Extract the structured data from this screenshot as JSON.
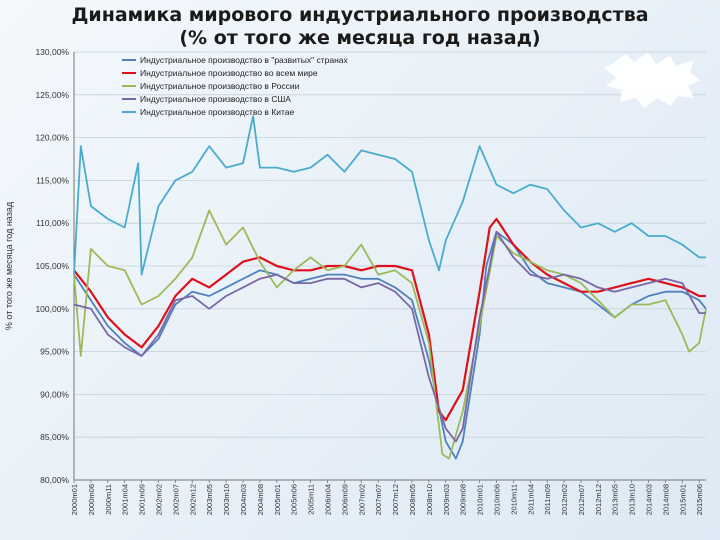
{
  "title_line1": "Динамика мирового индустриального производства",
  "title_line2": "(% от того же месяца год назад)",
  "chart_data": {
    "type": "line",
    "ylabel": "% от того же месяца год назад",
    "xlabel": "",
    "ylim": [
      80,
      130
    ],
    "ytick_labels": [
      "130,00%",
      "125,00%",
      "120,00%",
      "115,00%",
      "110,00%",
      "105,00%",
      "100,00%",
      "95,00%",
      "90,00%",
      "85,00%",
      "80,00%"
    ],
    "yticks": [
      130,
      125,
      120,
      115,
      110,
      105,
      100,
      95,
      90,
      85,
      80
    ],
    "x_tick_labels": [
      "2000m01",
      "2000m06",
      "2000m11",
      "2001m04",
      "2001m09",
      "2002m02",
      "2002m07",
      "2002m12",
      "2003m05",
      "2003m10",
      "2004m03",
      "2004m08",
      "2005m01",
      "2005m06",
      "2005m11",
      "2006m04",
      "2006m09",
      "2007m02",
      "2007m07",
      "2007m12",
      "2008m05",
      "2008m10",
      "2009m03",
      "2009m08",
      "2010m01",
      "2010m06",
      "2010m11",
      "2011m04",
      "2011m09",
      "2012m02",
      "2012m07",
      "2012m12",
      "2013m05",
      "2013m10",
      "2014m03",
      "2014m08",
      "2015m01",
      "2015m06"
    ],
    "x_start": "2000m01",
    "x_end": "2015m08",
    "grid": "horizontal",
    "legend_position": "top-left",
    "series": [
      {
        "name": "Индустриальное производство в \"развитых\" странах",
        "color": "#4f81bd",
        "points": [
          [
            "2000m01",
            104.0
          ],
          [
            "2000m06",
            101.0
          ],
          [
            "2000m11",
            98.0
          ],
          [
            "2001m04",
            96.0
          ],
          [
            "2001m09",
            94.5
          ],
          [
            "2002m02",
            96.5
          ],
          [
            "2002m07",
            100.5
          ],
          [
            "2002m12",
            102.0
          ],
          [
            "2003m05",
            101.5
          ],
          [
            "2003m10",
            102.5
          ],
          [
            "2004m03",
            103.5
          ],
          [
            "2004m08",
            104.5
          ],
          [
            "2005m01",
            104.0
          ],
          [
            "2005m06",
            103.0
          ],
          [
            "2005m11",
            103.5
          ],
          [
            "2006m04",
            104.0
          ],
          [
            "2006m09",
            104.0
          ],
          [
            "2007m02",
            103.5
          ],
          [
            "2007m07",
            103.5
          ],
          [
            "2007m12",
            102.5
          ],
          [
            "2008m05",
            101.0
          ],
          [
            "2008m10",
            94.0
          ],
          [
            "2009m03",
            84.5
          ],
          [
            "2009m06",
            82.5
          ],
          [
            "2009m08",
            84.5
          ],
          [
            "2010m01",
            97.0
          ],
          [
            "2010m03",
            105.0
          ],
          [
            "2010m06",
            109.0
          ],
          [
            "2010m11",
            107.5
          ],
          [
            "2011m04",
            104.5
          ],
          [
            "2011m09",
            103.0
          ],
          [
            "2012m02",
            102.5
          ],
          [
            "2012m07",
            102.0
          ],
          [
            "2012m12",
            100.5
          ],
          [
            "2013m05",
            99.0
          ],
          [
            "2013m10",
            100.5
          ],
          [
            "2014m03",
            101.5
          ],
          [
            "2014m08",
            102.0
          ],
          [
            "2015m01",
            102.0
          ],
          [
            "2015m06",
            101.0
          ],
          [
            "2015m08",
            100.0
          ]
        ]
      },
      {
        "name": "Индустриальное производство во всем мире",
        "color": "#e0101a",
        "points": [
          [
            "2000m01",
            104.5
          ],
          [
            "2000m06",
            102.0
          ],
          [
            "2000m11",
            99.0
          ],
          [
            "2001m04",
            97.0
          ],
          [
            "2001m09",
            95.5
          ],
          [
            "2002m02",
            98.0
          ],
          [
            "2002m07",
            101.5
          ],
          [
            "2002m12",
            103.5
          ],
          [
            "2003m05",
            102.5
          ],
          [
            "2003m10",
            104.0
          ],
          [
            "2004m03",
            105.5
          ],
          [
            "2004m08",
            106.0
          ],
          [
            "2005m01",
            105.0
          ],
          [
            "2005m06",
            104.5
          ],
          [
            "2005m11",
            104.5
          ],
          [
            "2006m04",
            105.0
          ],
          [
            "2006m09",
            105.0
          ],
          [
            "2007m02",
            104.5
          ],
          [
            "2007m07",
            105.0
          ],
          [
            "2007m12",
            105.0
          ],
          [
            "2008m05",
            104.5
          ],
          [
            "2008m10",
            97.0
          ],
          [
            "2009m01",
            88.0
          ],
          [
            "2009m03",
            87.0
          ],
          [
            "2009m08",
            90.5
          ],
          [
            "2010m01",
            102.0
          ],
          [
            "2010m04",
            109.5
          ],
          [
            "2010m06",
            110.5
          ],
          [
            "2010m11",
            107.5
          ],
          [
            "2011m04",
            105.5
          ],
          [
            "2011m09",
            104.0
          ],
          [
            "2012m02",
            103.0
          ],
          [
            "2012m07",
            102.0
          ],
          [
            "2012m12",
            102.0
          ],
          [
            "2013m05",
            102.5
          ],
          [
            "2013m10",
            103.0
          ],
          [
            "2014m03",
            103.5
          ],
          [
            "2014m08",
            103.0
          ],
          [
            "2015m01",
            102.5
          ],
          [
            "2015m06",
            101.5
          ],
          [
            "2015m08",
            101.5
          ]
        ]
      },
      {
        "name": "Индустриальное производство в России",
        "color": "#9bbb59",
        "points": [
          [
            "2000m01",
            104.0
          ],
          [
            "2000m03",
            94.5
          ],
          [
            "2000m06",
            107.0
          ],
          [
            "2000m11",
            105.0
          ],
          [
            "2001m04",
            104.5
          ],
          [
            "2001m09",
            100.5
          ],
          [
            "2002m02",
            101.5
          ],
          [
            "2002m07",
            103.5
          ],
          [
            "2002m12",
            106.0
          ],
          [
            "2003m05",
            111.5
          ],
          [
            "2003m10",
            107.5
          ],
          [
            "2004m03",
            109.5
          ],
          [
            "2004m08",
            105.5
          ],
          [
            "2005m01",
            102.5
          ],
          [
            "2005m06",
            104.5
          ],
          [
            "2005m11",
            106.0
          ],
          [
            "2006m04",
            104.5
          ],
          [
            "2006m09",
            105.0
          ],
          [
            "2007m02",
            107.5
          ],
          [
            "2007m07",
            104.0
          ],
          [
            "2007m12",
            104.5
          ],
          [
            "2008m05",
            103.0
          ],
          [
            "2008m10",
            96.0
          ],
          [
            "2009m02",
            83.0
          ],
          [
            "2009m04",
            82.5
          ],
          [
            "2009m08",
            88.0
          ],
          [
            "2010m01",
            98.0
          ],
          [
            "2010m06",
            108.5
          ],
          [
            "2010m11",
            106.5
          ],
          [
            "2011m04",
            105.5
          ],
          [
            "2011m09",
            104.5
          ],
          [
            "2012m02",
            104.0
          ],
          [
            "2012m07",
            103.0
          ],
          [
            "2012m12",
            101.0
          ],
          [
            "2013m05",
            99.0
          ],
          [
            "2013m10",
            100.5
          ],
          [
            "2014m03",
            100.5
          ],
          [
            "2014m08",
            101.0
          ],
          [
            "2015m01",
            97.0
          ],
          [
            "2015m03",
            95.0
          ],
          [
            "2015m06",
            96.0
          ],
          [
            "2015m08",
            100.0
          ]
        ]
      },
      {
        "name": "Индустриальное производство в США",
        "color": "#7a68a6",
        "points": [
          [
            "2000m01",
            100.5
          ],
          [
            "2000m06",
            100.0
          ],
          [
            "2000m11",
            97.0
          ],
          [
            "2001m04",
            95.5
          ],
          [
            "2001m09",
            94.5
          ],
          [
            "2002m02",
            97.0
          ],
          [
            "2002m07",
            101.0
          ],
          [
            "2002m12",
            101.5
          ],
          [
            "2003m05",
            100.0
          ],
          [
            "2003m10",
            101.5
          ],
          [
            "2004m03",
            102.5
          ],
          [
            "2004m08",
            103.5
          ],
          [
            "2005m01",
            104.0
          ],
          [
            "2005m06",
            103.0
          ],
          [
            "2005m11",
            103.0
          ],
          [
            "2006m04",
            103.5
          ],
          [
            "2006m09",
            103.5
          ],
          [
            "2007m02",
            102.5
          ],
          [
            "2007m07",
            103.0
          ],
          [
            "2007m12",
            102.0
          ],
          [
            "2008m05",
            100.0
          ],
          [
            "2008m10",
            92.0
          ],
          [
            "2009m03",
            86.0
          ],
          [
            "2009m06",
            84.5
          ],
          [
            "2009m08",
            86.0
          ],
          [
            "2010m01",
            99.0
          ],
          [
            "2010m06",
            109.0
          ],
          [
            "2010m11",
            106.0
          ],
          [
            "2011m04",
            104.0
          ],
          [
            "2011m09",
            103.5
          ],
          [
            "2012m02",
            104.0
          ],
          [
            "2012m07",
            103.5
          ],
          [
            "2012m12",
            102.5
          ],
          [
            "2013m05",
            102.0
          ],
          [
            "2013m10",
            102.5
          ],
          [
            "2014m03",
            103.0
          ],
          [
            "2014m08",
            103.5
          ],
          [
            "2015m01",
            103.0
          ],
          [
            "2015m06",
            99.5
          ],
          [
            "2015m08",
            99.5
          ]
        ]
      },
      {
        "name": "Индустриальное производство в Китае",
        "color": "#4aaccd",
        "points": [
          [
            "2000m01",
            104.0
          ],
          [
            "2000m03",
            119.0
          ],
          [
            "2000m06",
            112.0
          ],
          [
            "2000m11",
            110.5
          ],
          [
            "2001m04",
            109.5
          ],
          [
            "2001m08",
            117.0
          ],
          [
            "2001m09",
            104.0
          ],
          [
            "2002m02",
            112.0
          ],
          [
            "2002m07",
            115.0
          ],
          [
            "2002m12",
            116.0
          ],
          [
            "2003m05",
            119.0
          ],
          [
            "2003m10",
            116.5
          ],
          [
            "2004m03",
            117.0
          ],
          [
            "2004m06",
            122.5
          ],
          [
            "2004m08",
            116.5
          ],
          [
            "2005m01",
            116.5
          ],
          [
            "2005m06",
            116.0
          ],
          [
            "2005m11",
            116.5
          ],
          [
            "2006m04",
            118.0
          ],
          [
            "2006m09",
            116.0
          ],
          [
            "2007m02",
            118.5
          ],
          [
            "2007m07",
            118.0
          ],
          [
            "2007m12",
            117.5
          ],
          [
            "2008m05",
            116.0
          ],
          [
            "2008m10",
            108.0
          ],
          [
            "2009m01",
            104.5
          ],
          [
            "2009m03",
            108.0
          ],
          [
            "2009m08",
            112.5
          ],
          [
            "2010m01",
            119.0
          ],
          [
            "2010m06",
            114.5
          ],
          [
            "2010m11",
            113.5
          ],
          [
            "2011m04",
            114.5
          ],
          [
            "2011m09",
            114.0
          ],
          [
            "2012m02",
            111.5
          ],
          [
            "2012m07",
            109.5
          ],
          [
            "2012m12",
            110.0
          ],
          [
            "2013m05",
            109.0
          ],
          [
            "2013m10",
            110.0
          ],
          [
            "2014m03",
            108.5
          ],
          [
            "2014m08",
            108.5
          ],
          [
            "2015m01",
            107.5
          ],
          [
            "2015m06",
            106.0
          ],
          [
            "2015m08",
            106.0
          ]
        ]
      }
    ]
  }
}
